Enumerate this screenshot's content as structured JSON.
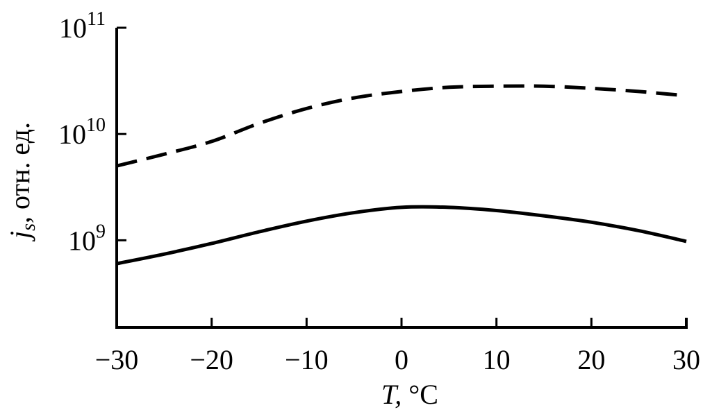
{
  "chart_data": {
    "type": "line",
    "title": "",
    "xlabel": "T, °C",
    "xlabel_italic": "T",
    "xlabel_rest": ", °C",
    "ylabel": "j_s, отн. ед.",
    "ylabel_symbol": "j",
    "ylabel_sub": "s",
    "ylabel_rest": ", отн. ед.",
    "xlim": [
      -30,
      30
    ],
    "ylim_log10": [
      8.18,
      11
    ],
    "yscale": "log",
    "xticks": [
      -30,
      -20,
      -10,
      0,
      10,
      20,
      30
    ],
    "xtick_labels": [
      "−30",
      "−20",
      "−10",
      "0",
      "10",
      "20",
      "30"
    ],
    "yticks_log10": [
      9,
      10,
      11
    ],
    "ytick_labels": [
      {
        "base": "10",
        "exp": "9"
      },
      {
        "base": "10",
        "exp": "10"
      },
      {
        "base": "10",
        "exp": "11"
      }
    ],
    "grid": false,
    "series": [
      {
        "name": "dashed",
        "style": "dashed",
        "x": [
          -30,
          -25,
          -20,
          -15,
          -10,
          -5,
          0,
          5,
          10,
          15,
          20,
          25,
          30
        ],
        "log10_y": [
          9.7,
          9.81,
          9.93,
          10.1,
          10.24,
          10.34,
          10.4,
          10.44,
          10.45,
          10.45,
          10.43,
          10.4,
          10.36
        ]
      },
      {
        "name": "solid",
        "style": "solid",
        "x": [
          -30,
          -25,
          -20,
          -15,
          -10,
          -5,
          0,
          5,
          10,
          15,
          20,
          25,
          30
        ],
        "log10_y": [
          8.78,
          8.87,
          8.97,
          9.08,
          9.18,
          9.26,
          9.31,
          9.31,
          9.28,
          9.23,
          9.17,
          9.09,
          8.99
        ]
      }
    ]
  }
}
